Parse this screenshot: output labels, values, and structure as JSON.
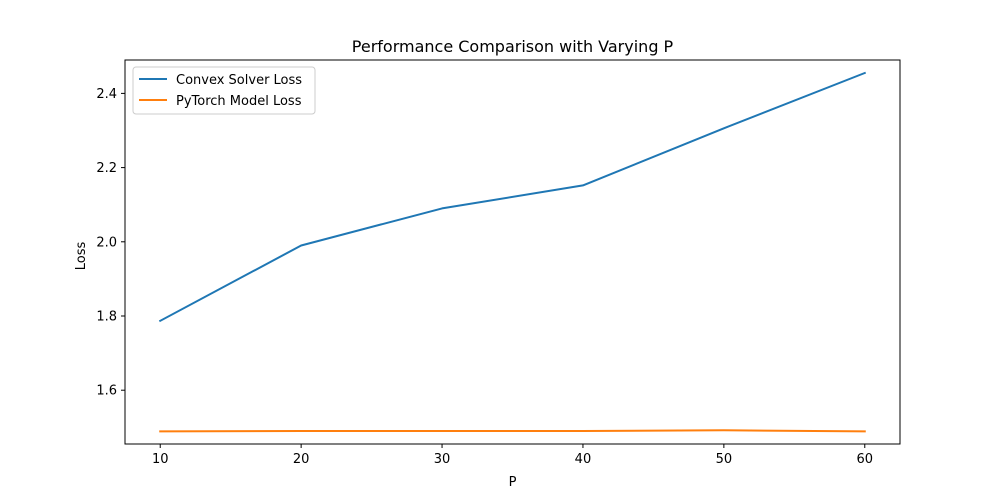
{
  "chart_data": {
    "type": "line",
    "title": "Performance Comparison with Varying P",
    "xlabel": "P",
    "ylabel": "Loss",
    "x": [
      10,
      20,
      30,
      40,
      50,
      60
    ],
    "xticks": [
      10,
      20,
      30,
      40,
      50,
      60
    ],
    "yticks": [
      1.6,
      1.8,
      2.0,
      2.2,
      2.4
    ],
    "ytick_labels": [
      "1.6",
      "1.8",
      "2.0",
      "2.2",
      "2.4"
    ],
    "xlim": [
      7.5,
      62.5
    ],
    "ylim": [
      1.455,
      2.49
    ],
    "grid": false,
    "legend_position": "top-left",
    "series": [
      {
        "name": "Convex Solver Loss",
        "color": "#1f77b4",
        "values": [
          1.787,
          1.99,
          2.09,
          2.152,
          2.306,
          2.455
        ]
      },
      {
        "name": "PyTorch Model Loss",
        "color": "#ff7f0e",
        "values": [
          1.489,
          1.49,
          1.49,
          1.49,
          1.492,
          1.489
        ]
      }
    ]
  }
}
